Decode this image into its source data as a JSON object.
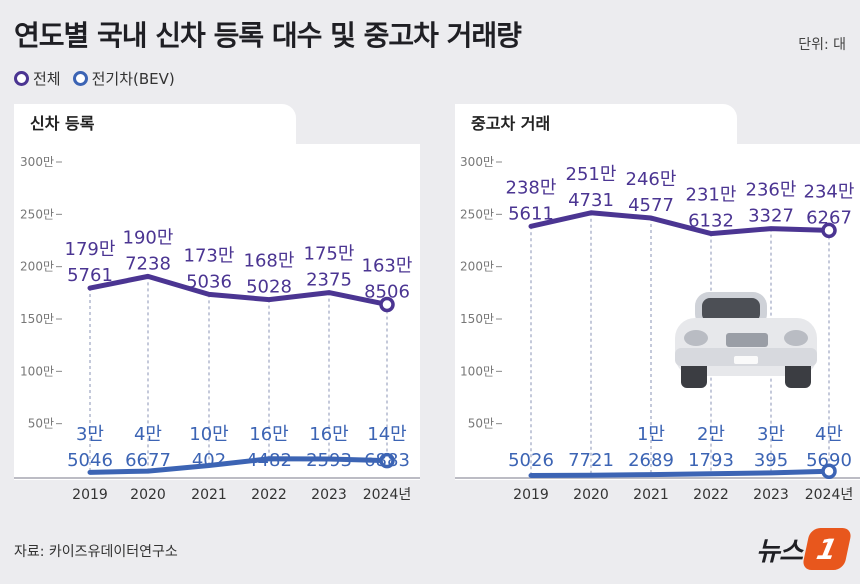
{
  "title": "연도별 국내 신차 등록 대수 및 중고차 거래량",
  "unit": "단위: 대",
  "legend": [
    "전체",
    "전기차(BEV)"
  ],
  "colors": {
    "total": "#4b3592",
    "ev": "#3c64b4",
    "bg": "#ececef"
  },
  "source": "자료: 카이즈유데이터연구소",
  "logo_text": "뉴스",
  "logo_mark": "1",
  "icon": "car-icon",
  "chart_data": [
    {
      "type": "line",
      "title": "신차 등록",
      "categories": [
        "2019",
        "2020",
        "2021",
        "2022",
        "2023",
        "2024년"
      ],
      "y_ticks": [
        "50만",
        "100만",
        "150만",
        "200만",
        "250만",
        "300만"
      ],
      "ylim": [
        0,
        3000000
      ],
      "series": [
        {
          "name": "전체",
          "values": [
            1795761,
            1907238,
            1735036,
            1685028,
            1752375,
            1638506
          ],
          "labels_top": [
            "179만",
            "190만",
            "173만",
            "168만",
            "175만",
            "163만"
          ],
          "labels_bottom": [
            "5761",
            "7238",
            "5036",
            "5028",
            "2375",
            "8506"
          ]
        },
        {
          "name": "전기차(BEV)",
          "values": [
            35046,
            46677,
            100402,
            164482,
            162593,
            146883
          ],
          "labels_top": [
            "3만",
            "4만",
            "10만",
            "16만",
            "16만",
            "14만"
          ],
          "labels_bottom": [
            "5046",
            "6677",
            "402",
            "4482",
            "2593",
            "6883"
          ]
        }
      ]
    },
    {
      "type": "line",
      "title": "중고차 거래",
      "categories": [
        "2019",
        "2020",
        "2021",
        "2022",
        "2023",
        "2024년"
      ],
      "y_ticks": [
        "50만",
        "100만",
        "150만",
        "200만",
        "250만",
        "300만"
      ],
      "ylim": [
        0,
        3000000
      ],
      "series": [
        {
          "name": "전체",
          "values": [
            2385611,
            2514731,
            2464577,
            2316132,
            2363327,
            2346267
          ],
          "labels_top": [
            "238만",
            "251만",
            "246만",
            "231만",
            "236만",
            "234만"
          ],
          "labels_bottom": [
            "5611",
            "4731",
            "4577",
            "6132",
            "3327",
            "6267"
          ]
        },
        {
          "name": "전기차(BEV)",
          "values": [
            5026,
            7721,
            12689,
            21793,
            30395,
            45690
          ],
          "labels_top": [
            "",
            "",
            "1만",
            "2만",
            "3만",
            "4만"
          ],
          "labels_bottom": [
            "5026",
            "7721",
            "2689",
            "1793",
            "395",
            "5690"
          ]
        }
      ]
    }
  ]
}
